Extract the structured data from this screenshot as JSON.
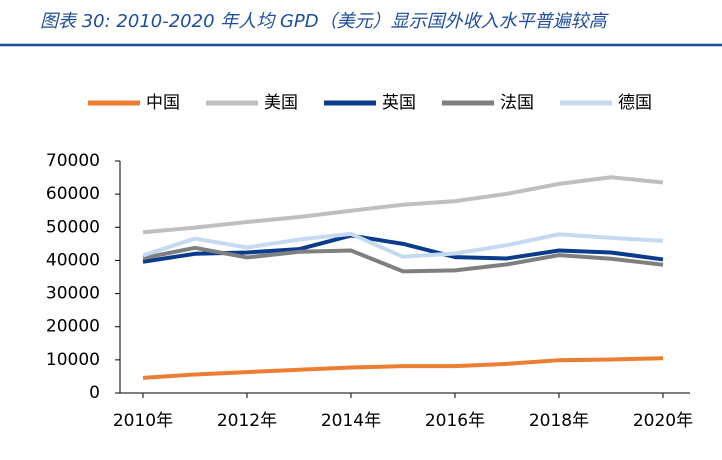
{
  "chart_data": {
    "type": "line",
    "title": "图表 30:  2010-2020 年人均 GPD（美元）显示国外收入水平普遍较高",
    "x": [
      2010,
      2011,
      2012,
      2013,
      2014,
      2015,
      2016,
      2017,
      2018,
      2019,
      2020
    ],
    "xlim": [
      2010,
      2020
    ],
    "xticks": [
      {
        "value": 2010,
        "label": "2010年"
      },
      {
        "value": 2012,
        "label": "2012年"
      },
      {
        "value": 2014,
        "label": "2014年"
      },
      {
        "value": 2016,
        "label": "2016年"
      },
      {
        "value": 2018,
        "label": "2018年"
      },
      {
        "value": 2020,
        "label": "2020年"
      }
    ],
    "ylim": [
      0,
      70000
    ],
    "yticks": [
      0,
      10000,
      20000,
      30000,
      40000,
      50000,
      60000,
      70000
    ],
    "legend": "top",
    "series": [
      {
        "name": "中国",
        "color": "#ed7d31",
        "values": [
          4550,
          5600,
          6300,
          7000,
          7700,
          8100,
          8100,
          8800,
          9900,
          10100,
          10500
        ]
      },
      {
        "name": "美国",
        "color": "#bfbfbf",
        "values": [
          48500,
          49900,
          51600,
          53100,
          55000,
          56800,
          57900,
          60100,
          63100,
          65100,
          63500
        ]
      },
      {
        "name": "英国",
        "color": "#0b3b8c",
        "values": [
          39600,
          42000,
          42400,
          43400,
          47500,
          45000,
          41000,
          40600,
          43000,
          42400,
          40300
        ]
      },
      {
        "name": "法国",
        "color": "#7f7f7f",
        "values": [
          40700,
          43800,
          40900,
          42600,
          43000,
          36700,
          37000,
          38800,
          41600,
          40500,
          38700
        ]
      },
      {
        "name": "德国",
        "color": "#c5d9f1",
        "values": [
          41500,
          46600,
          43900,
          46300,
          48000,
          41100,
          42100,
          44600,
          47900,
          46800,
          45900
        ]
      }
    ]
  }
}
